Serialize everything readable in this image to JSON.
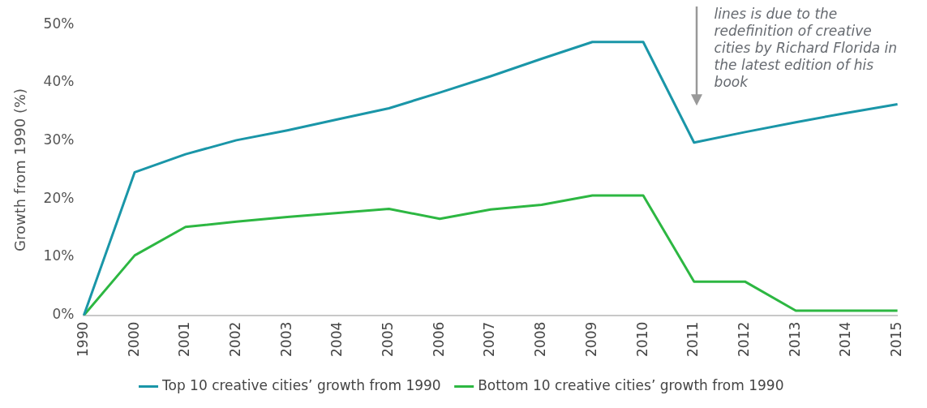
{
  "chart_data": {
    "type": "line",
    "ylabel": "Growth from 1990 (%)",
    "categories": [
      "1990",
      "2000",
      "2001",
      "2002",
      "2003",
      "2004",
      "2005",
      "2006",
      "2007",
      "2008",
      "2009",
      "2010",
      "2011",
      "2012",
      "2013",
      "2014",
      "2015"
    ],
    "series": [
      {
        "name": "Top 10 creative cities’ growth from 1990",
        "color": "#1a96a8",
        "values": [
          0,
          24.6,
          27.7,
          30.1,
          31.8,
          33.7,
          35.6,
          38.3,
          41.1,
          44.1,
          47,
          47,
          29.7,
          31.5,
          33.2,
          34.8,
          36.3
        ]
      },
      {
        "name": "Bottom 10 creative cities’ growth from 1990",
        "color": "#2db742",
        "values": [
          0,
          10.3,
          15.2,
          16.1,
          16.9,
          17.6,
          18.3,
          16.6,
          18.2,
          19,
          20.6,
          20.6,
          5.8,
          5.8,
          0.8,
          0.8,
          0.8
        ]
      }
    ],
    "ylim": [
      0,
      50
    ],
    "yticks": [
      {
        "value": 0,
        "label": "0%"
      },
      {
        "value": 10,
        "label": "10%"
      },
      {
        "value": 20,
        "label": "20%"
      },
      {
        "value": 30,
        "label": "30%"
      },
      {
        "value": 40,
        "label": "40%"
      },
      {
        "value": 50,
        "label": "50%"
      }
    ],
    "grid": false,
    "legend": "bottom",
    "marker": "none",
    "line_style": "solid",
    "annotations": [
      "lines is due to the redefinition of creative cities by Richard Florida in the latest edition of his book"
    ]
  }
}
